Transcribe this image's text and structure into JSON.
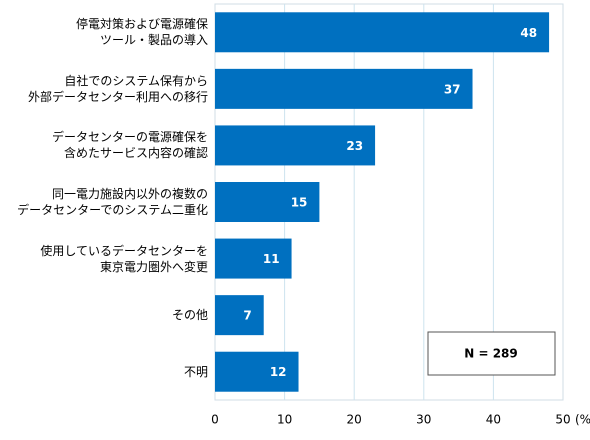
{
  "chart_data": {
    "type": "bar",
    "orientation": "horizontal",
    "categories": [
      "停電対策および電源確保\nツール・製品の導入",
      "自社でのシステム保有から\n外部データセンター利用への移行",
      "データセンターの電源確保を\n含めたサービス内容の確認",
      "同一電力施設内以外の複数の\nデータセンターでのシステム二重化",
      "使用しているデータセンターを\n東京電力圏外へ変更",
      "その他",
      "不明"
    ],
    "values": [
      48,
      37,
      23,
      15,
      11,
      7,
      12
    ],
    "color": "#0070c0",
    "xlim": [
      0,
      50
    ],
    "xticks": [
      0,
      10,
      20,
      30,
      40,
      50
    ],
    "xlabel": "(%)",
    "grid": true,
    "annotation": "N = 289"
  }
}
